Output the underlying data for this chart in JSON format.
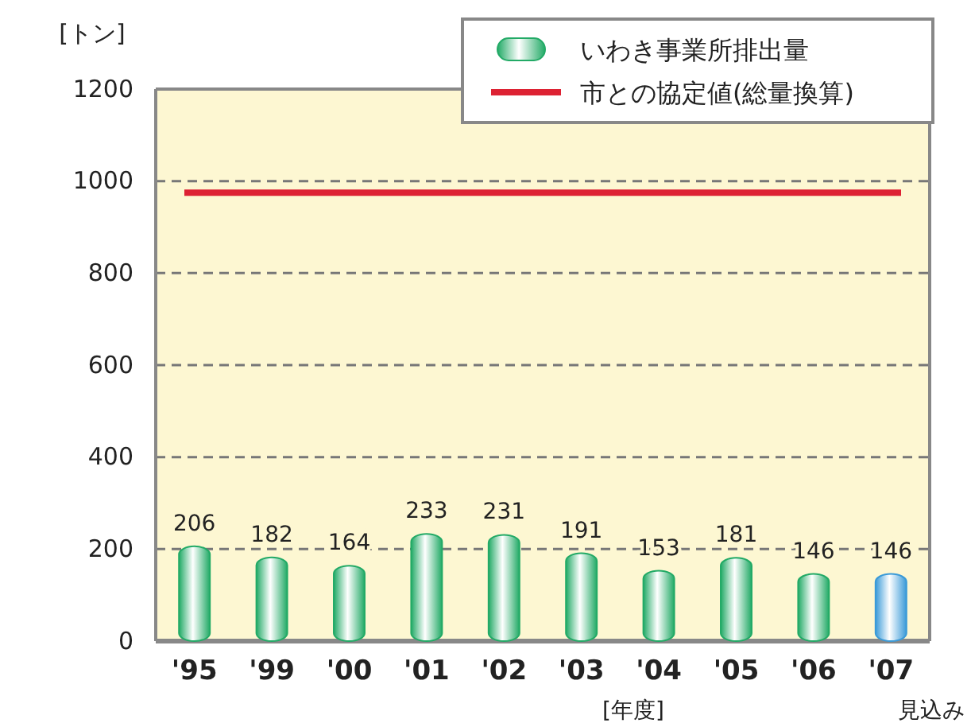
{
  "chart_data": {
    "type": "bar",
    "ylabel": "[トン]",
    "xlabel": "[年度]",
    "categories": [
      "'95",
      "'99",
      "'00",
      "'01",
      "'02",
      "'03",
      "'04",
      "'05",
      "'06",
      "'07"
    ],
    "series": [
      {
        "name": "いわき事業所排出量",
        "color": "#22aa66",
        "colors": [
          "#22aa66",
          "#22aa66",
          "#22aa66",
          "#22aa66",
          "#22aa66",
          "#22aa66",
          "#22aa66",
          "#22aa66",
          "#22aa66",
          "#3a9ad8"
        ],
        "values": [
          206,
          182,
          164,
          233,
          231,
          191,
          153,
          181,
          146,
          146
        ]
      }
    ],
    "data_labels": true,
    "ylim": [
      0,
      1200
    ],
    "yticks": [
      0,
      200,
      400,
      600,
      800,
      1000,
      1200
    ],
    "grid": "y",
    "legend": "top right",
    "ref_lines": [
      {
        "axis": "y",
        "value": 975,
        "label": "市との協定値(総量換算)",
        "color": "#dd2233"
      }
    ],
    "annotations": [
      "見込み"
    ]
  }
}
